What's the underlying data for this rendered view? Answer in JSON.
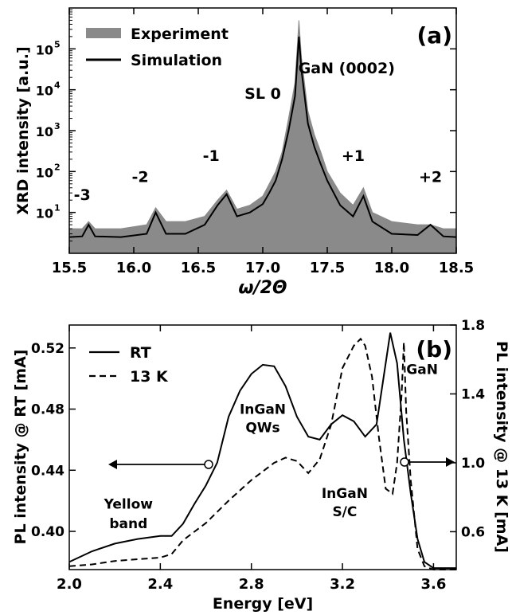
{
  "chart_data": [
    {
      "panel": "(a)",
      "type": "line",
      "xlabel": "ω/2Θ",
      "ylabel": "XRD intensity [a.u.]",
      "xlim": [
        15.5,
        18.5
      ],
      "ylim": [
        1,
        1000000
      ],
      "yscale": "log",
      "xticks": [
        "15.5",
        "16.0",
        "16.5",
        "17.0",
        "17.5",
        "18.0",
        "18.5"
      ],
      "yticks": [
        {
          "base": "10",
          "exp": "1",
          "value": 10
        },
        {
          "base": "10",
          "exp": "2",
          "value": 100
        },
        {
          "base": "10",
          "exp": "3",
          "value": 1000
        },
        {
          "base": "10",
          "exp": "4",
          "value": 10000
        },
        {
          "base": "10",
          "exp": "5",
          "value": 100000
        }
      ],
      "legend": {
        "placement": "top-left",
        "entries": [
          "Experiment",
          "Simulation"
        ]
      },
      "series": [
        {
          "name": "Experiment",
          "color": "#8a8a8a",
          "x": [
            15.5,
            15.6,
            15.65,
            15.7,
            15.9,
            16.1,
            16.17,
            16.25,
            16.4,
            16.55,
            16.65,
            16.72,
            16.8,
            16.9,
            17.0,
            17.05,
            17.1,
            17.15,
            17.2,
            17.25,
            17.28,
            17.3,
            17.35,
            17.4,
            17.45,
            17.5,
            17.6,
            17.7,
            17.78,
            17.85,
            18.0,
            18.2,
            18.3,
            18.4,
            18.5
          ],
          "y": [
            4,
            4,
            6,
            4,
            4,
            5,
            13,
            6,
            6,
            8,
            20,
            35,
            12,
            15,
            25,
            50,
            100,
            300,
            2000,
            15000,
            500000,
            60000,
            3000,
            800,
            300,
            100,
            30,
            15,
            40,
            10,
            6,
            5,
            5,
            4,
            4
          ]
        },
        {
          "name": "Simulation",
          "color": "#000000",
          "x": [
            15.5,
            15.6,
            15.65,
            15.7,
            15.9,
            16.1,
            16.17,
            16.25,
            16.4,
            16.55,
            16.65,
            16.72,
            16.8,
            16.9,
            17.0,
            17.05,
            17.1,
            17.15,
            17.2,
            17.25,
            17.28,
            17.3,
            17.35,
            17.4,
            17.45,
            17.5,
            17.6,
            17.7,
            17.78,
            17.85,
            18.0,
            18.2,
            18.3,
            18.4,
            18.5
          ],
          "y": [
            2.5,
            2.6,
            5,
            2.6,
            2.5,
            3,
            10,
            3,
            3,
            5,
            15,
            28,
            8,
            10,
            16,
            30,
            60,
            200,
            1000,
            7000,
            200000,
            30000,
            1500,
            400,
            150,
            60,
            15,
            8,
            25,
            6,
            3,
            2.8,
            5,
            2.6,
            2.5
          ]
        }
      ],
      "annotations": [
        {
          "text": "SL 0",
          "x": 17.0,
          "y": 6000
        },
        {
          "text": "GaN (0002)",
          "x": 17.65,
          "y": 25000
        },
        {
          "text": "-1",
          "x": 16.6,
          "y": 180
        },
        {
          "text": "+1",
          "x": 17.7,
          "y": 180
        },
        {
          "text": "-2",
          "x": 16.05,
          "y": 55
        },
        {
          "text": "+2",
          "x": 18.3,
          "y": 55
        },
        {
          "text": "-3",
          "x": 15.6,
          "y": 20
        }
      ]
    },
    {
      "panel": "(b)",
      "type": "line",
      "xlabel": "Energy [eV]",
      "ylabel": "PL intensity @ RT [mA]",
      "y2label": "PL intensity @ 13 K [mA]",
      "xlim": [
        2.0,
        3.7
      ],
      "ylim": [
        0.375,
        0.535
      ],
      "y2lim": [
        0.38,
        1.8
      ],
      "xticks": [
        "2.0",
        "2.4",
        "2.8",
        "3.2",
        "3.6"
      ],
      "yticks": [
        "0.40",
        "0.44",
        "0.48",
        "0.52"
      ],
      "y2ticks": [
        "0.6",
        "1.0",
        "1.4",
        "1.8"
      ],
      "legend": {
        "placement": "top-left",
        "entries": [
          "RT",
          "13 K"
        ]
      },
      "series": [
        {
          "name": "RT",
          "axis": "left",
          "style": "solid",
          "x": [
            2.0,
            2.1,
            2.2,
            2.3,
            2.4,
            2.45,
            2.5,
            2.55,
            2.6,
            2.65,
            2.7,
            2.75,
            2.8,
            2.85,
            2.9,
            2.95,
            3.0,
            3.05,
            3.1,
            3.15,
            3.2,
            3.25,
            3.3,
            3.35,
            3.38,
            3.41,
            3.44,
            3.47,
            3.5,
            3.53,
            3.56,
            3.6,
            3.65,
            3.7
          ],
          "y": [
            0.38,
            0.387,
            0.392,
            0.395,
            0.397,
            0.397,
            0.405,
            0.418,
            0.43,
            0.445,
            0.475,
            0.492,
            0.503,
            0.509,
            0.508,
            0.495,
            0.475,
            0.462,
            0.46,
            0.47,
            0.476,
            0.472,
            0.462,
            0.47,
            0.5,
            0.53,
            0.51,
            0.46,
            0.425,
            0.395,
            0.38,
            0.376,
            0.376,
            0.376
          ]
        },
        {
          "name": "13 K",
          "axis": "right",
          "style": "dashed",
          "x": [
            2.0,
            2.1,
            2.2,
            2.3,
            2.4,
            2.45,
            2.5,
            2.6,
            2.7,
            2.8,
            2.9,
            2.95,
            3.0,
            3.05,
            3.1,
            3.15,
            3.2,
            3.25,
            3.28,
            3.3,
            3.33,
            3.36,
            3.39,
            3.42,
            3.44,
            3.46,
            3.47,
            3.48,
            3.5,
            3.53,
            3.56,
            3.6,
            3.7
          ],
          "y": [
            0.4,
            0.41,
            0.43,
            0.44,
            0.45,
            0.47,
            0.55,
            0.65,
            0.78,
            0.9,
            1.0,
            1.03,
            1.01,
            0.94,
            1.02,
            1.22,
            1.55,
            1.68,
            1.72,
            1.68,
            1.5,
            1.15,
            0.85,
            0.82,
            1.0,
            1.4,
            1.7,
            1.3,
            0.9,
            0.5,
            0.4,
            0.38,
            0.38
          ]
        }
      ],
      "annotations": [
        {
          "text": "InGaN",
          "x": 2.85,
          "y": 0.477
        },
        {
          "text": "QWs",
          "x": 2.85,
          "y": 0.465
        },
        {
          "text": "InGaN",
          "x": 3.21,
          "y": 0.422
        },
        {
          "text": "S/C",
          "x": 3.21,
          "y": 0.41
        },
        {
          "text": "GaN",
          "x": 3.55,
          "y": 0.503
        },
        {
          "text": "Yellow",
          "x": 2.26,
          "y": 0.415
        },
        {
          "text": "band",
          "x": 2.26,
          "y": 0.402
        }
      ]
    }
  ]
}
